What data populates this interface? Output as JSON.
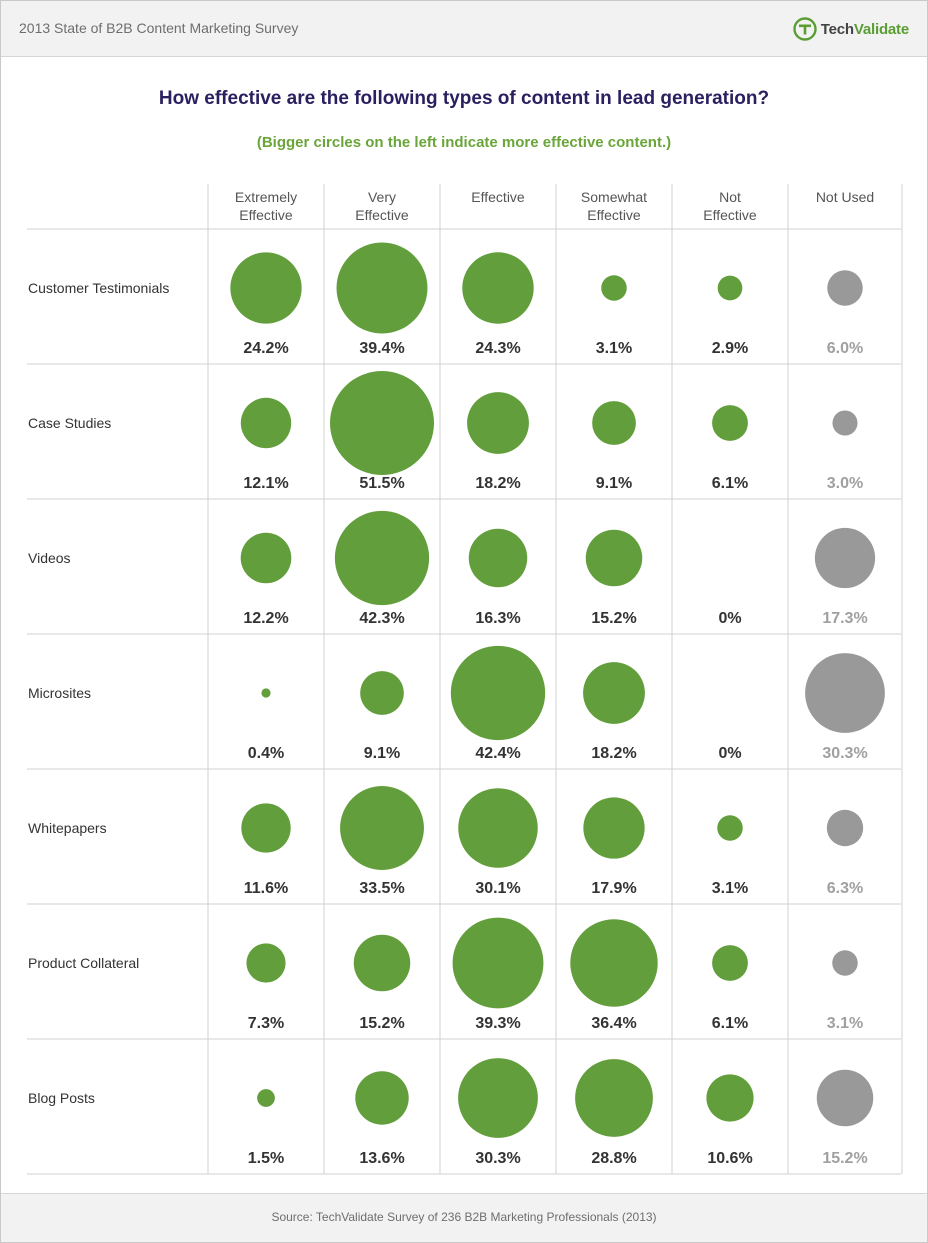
{
  "header": {
    "survey_title": "2013 State of B2B Content Marketing Survey",
    "logo_brand_a": "Tech",
    "logo_brand_b": "Validate"
  },
  "colors": {
    "effective": "#629e3b",
    "not_used": "#999999",
    "title": "#2a1f5f",
    "subtitle": "#6aa53a",
    "value_text": "#333333",
    "not_used_text": "#a0a0a0"
  },
  "footer": {
    "source": "Source: TechValidate Survey of 236 B2B Marketing Professionals (2013)"
  },
  "chart_data": {
    "type": "bubble-matrix",
    "title": "How effective are the following types of content in lead generation?",
    "subtitle": "(Bigger circles on the left indicate more effective content.)",
    "columns": [
      [
        "Extremely",
        "Effective"
      ],
      [
        "Very",
        "Effective"
      ],
      [
        "Effective"
      ],
      [
        "Somewhat",
        "Effective"
      ],
      [
        "Not",
        "Effective"
      ],
      [
        "Not Used"
      ]
    ],
    "rows": [
      {
        "label": "Customer Testimonials",
        "values": [
          24.2,
          39.4,
          24.3,
          3.1,
          2.9,
          6.0
        ],
        "display": [
          "24.2%",
          "39.4%",
          "24.3%",
          "3.1%",
          "2.9%",
          "6.0%"
        ]
      },
      {
        "label": "Case Studies",
        "values": [
          12.1,
          51.5,
          18.2,
          9.1,
          6.1,
          3.0
        ],
        "display": [
          "12.1%",
          "51.5%",
          "18.2%",
          "9.1%",
          "6.1%",
          "3.0%"
        ]
      },
      {
        "label": "Videos",
        "values": [
          12.2,
          42.3,
          16.3,
          15.2,
          0,
          17.3
        ],
        "display": [
          "12.2%",
          "42.3%",
          "16.3%",
          "15.2%",
          "0%",
          "17.3%"
        ]
      },
      {
        "label": "Microsites",
        "values": [
          0.4,
          9.1,
          42.4,
          18.2,
          0,
          30.3
        ],
        "display": [
          "0.4%",
          "9.1%",
          "42.4%",
          "18.2%",
          "0%",
          "30.3%"
        ]
      },
      {
        "label": "Whitepapers",
        "values": [
          11.6,
          33.5,
          30.1,
          17.9,
          3.1,
          6.3
        ],
        "display": [
          "11.6%",
          "33.5%",
          "30.1%",
          "17.9%",
          "3.1%",
          "6.3%"
        ]
      },
      {
        "label": "Product Collateral",
        "values": [
          7.3,
          15.2,
          39.3,
          36.4,
          6.1,
          3.1
        ],
        "display": [
          "7.3%",
          "15.2%",
          "39.3%",
          "36.4%",
          "6.1%",
          "3.1%"
        ]
      },
      {
        "label": "Blog Posts",
        "values": [
          1.5,
          13.6,
          30.3,
          28.8,
          10.6,
          15.2
        ],
        "display": [
          "1.5%",
          "13.6%",
          "30.3%",
          "28.8%",
          "10.6%",
          "15.2%"
        ]
      }
    ]
  }
}
